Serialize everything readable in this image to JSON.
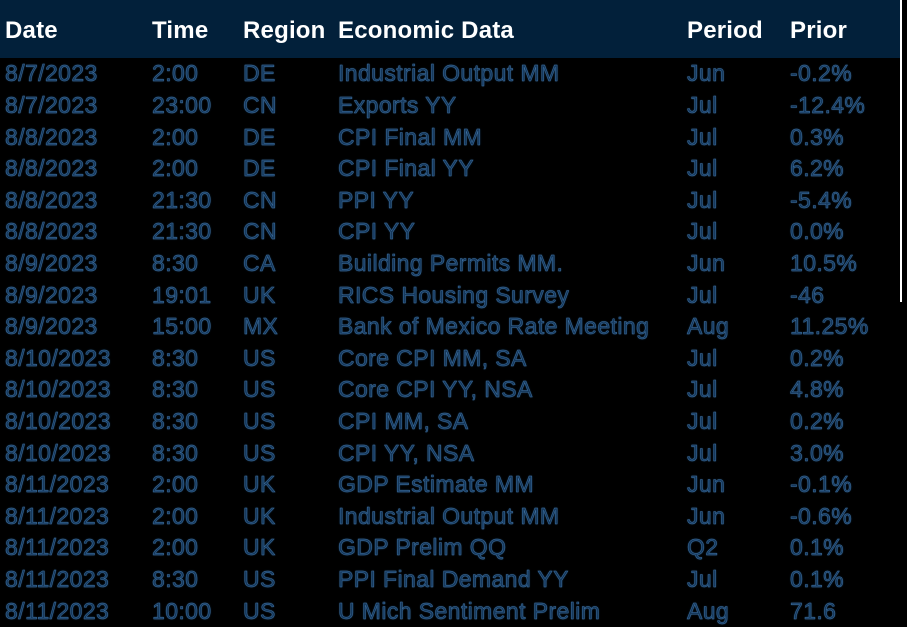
{
  "colors": {
    "background": "#000000",
    "header_background": "#02203A",
    "header_text": "#FFFFFF",
    "row_text": "#16395D",
    "row_text_fringe": "#2F6DA4",
    "edge_line": "#FFFFFF"
  },
  "chart_data": {
    "type": "table",
    "columns": [
      "Date",
      "Time",
      "Region",
      "Economic Data",
      "Period",
      "Prior"
    ],
    "rows": [
      {
        "date": "8/7/2023",
        "time": "2:00",
        "region": "DE",
        "event": "Industrial Output MM",
        "period": "Jun",
        "prior": "-0.2%"
      },
      {
        "date": "8/7/2023",
        "time": "23:00",
        "region": "CN",
        "event": "Exports YY",
        "period": "Jul",
        "prior": "-12.4%"
      },
      {
        "date": "8/8/2023",
        "time": "2:00",
        "region": "DE",
        "event": "CPI Final MM",
        "period": "Jul",
        "prior": "0.3%"
      },
      {
        "date": "8/8/2023",
        "time": "2:00",
        "region": "DE",
        "event": "CPI Final YY",
        "period": "Jul",
        "prior": "6.2%"
      },
      {
        "date": "8/8/2023",
        "time": "21:30",
        "region": "CN",
        "event": "PPI YY",
        "period": "Jul",
        "prior": "-5.4%"
      },
      {
        "date": "8/8/2023",
        "time": "21:30",
        "region": "CN",
        "event": "CPI YY",
        "period": "Jul",
        "prior": "0.0%"
      },
      {
        "date": "8/9/2023",
        "time": "8:30",
        "region": "CA",
        "event": "Building Permits MM.",
        "period": "Jun",
        "prior": "10.5%"
      },
      {
        "date": "8/9/2023",
        "time": "19:01",
        "region": "UK",
        "event": "RICS Housing Survey",
        "period": "Jul",
        "prior": "-46"
      },
      {
        "date": "8/9/2023",
        "time": "15:00",
        "region": "MX",
        "event": "Bank of Mexico Rate Meeting",
        "period": "Aug",
        "prior": "11.25%"
      },
      {
        "date": "8/10/2023",
        "time": "8:30",
        "region": "US",
        "event": "Core CPI MM, SA",
        "period": "Jul",
        "prior": "0.2%"
      },
      {
        "date": "8/10/2023",
        "time": "8:30",
        "region": "US",
        "event": "Core CPI YY, NSA",
        "period": "Jul",
        "prior": "4.8%"
      },
      {
        "date": "8/10/2023",
        "time": "8:30",
        "region": "US",
        "event": "CPI MM, SA",
        "period": "Jul",
        "prior": "0.2%"
      },
      {
        "date": "8/10/2023",
        "time": "8:30",
        "region": "US",
        "event": "CPI YY, NSA",
        "period": "Jul",
        "prior": "3.0%"
      },
      {
        "date": "8/11/2023",
        "time": "2:00",
        "region": "UK",
        "event": "GDP Estimate MM",
        "period": "Jun",
        "prior": "-0.1%"
      },
      {
        "date": "8/11/2023",
        "time": "2:00",
        "region": "UK",
        "event": "Industrial Output MM",
        "period": "Jun",
        "prior": "-0.6%"
      },
      {
        "date": "8/11/2023",
        "time": "2:00",
        "region": "UK",
        "event": "GDP Prelim QQ",
        "period": "Q2",
        "prior": "0.1%"
      },
      {
        "date": "8/11/2023",
        "time": "8:30",
        "region": "US",
        "event": "PPI Final Demand YY",
        "period": "Jul",
        "prior": "0.1%"
      },
      {
        "date": "8/11/2023",
        "time": "10:00",
        "region": "US",
        "event": "U Mich Sentiment Prelim",
        "period": "Aug",
        "prior": "71.6"
      }
    ]
  }
}
